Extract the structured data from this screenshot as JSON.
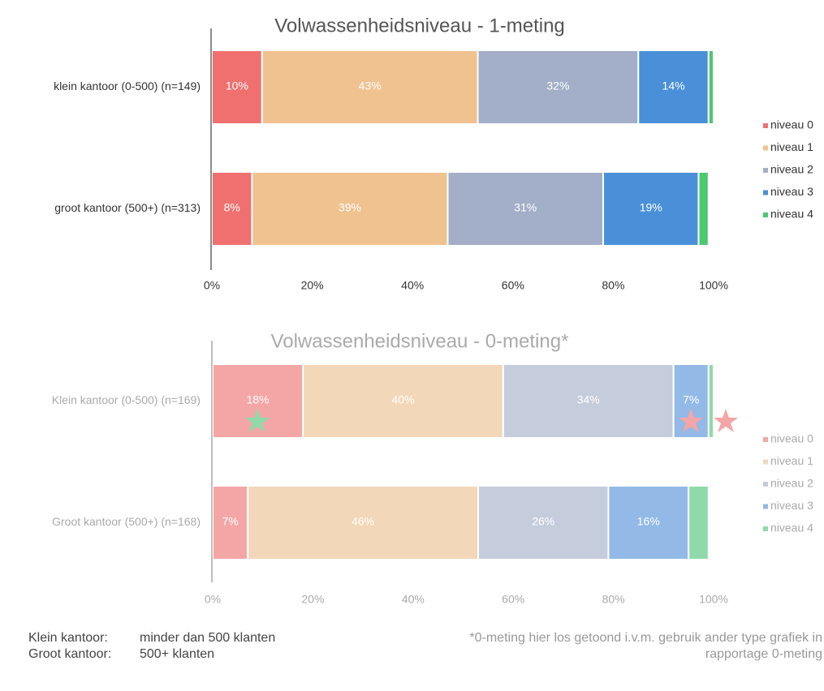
{
  "chart_data": [
    {
      "type": "stacked_bar_h",
      "title": "Volwassenheidsniveau - 1-meting",
      "categories": [
        "klein kantoor (0-500) (n=149)",
        "groot kantoor (500+) (n=313)"
      ],
      "series": [
        {
          "name": "niveau 0",
          "color": "#f07070",
          "values": [
            10,
            8
          ],
          "value_labels": [
            "10%",
            "8%"
          ]
        },
        {
          "name": "niveau 1",
          "color": "#f0c290",
          "values": [
            43,
            39
          ],
          "value_labels": [
            "43%",
            "39%"
          ]
        },
        {
          "name": "niveau 2",
          "color": "#a3afc8",
          "values": [
            32,
            31
          ],
          "value_labels": [
            "32%",
            "31%"
          ]
        },
        {
          "name": "niveau 3",
          "color": "#4a90d9",
          "values": [
            14,
            19
          ],
          "value_labels": [
            "14%",
            "19%"
          ]
        },
        {
          "name": "niveau 4",
          "color": "#4cc870",
          "values": [
            1,
            2
          ],
          "value_labels": [
            null,
            null
          ]
        }
      ],
      "xlim": [
        0,
        100
      ],
      "xticks": [
        {
          "value": 0,
          "label": "0%"
        },
        {
          "value": 20,
          "label": "20%"
        },
        {
          "value": 40,
          "label": "40%"
        },
        {
          "value": 60,
          "label": "60%"
        },
        {
          "value": 80,
          "label": "80%"
        },
        {
          "value": 100,
          "label": "100%"
        }
      ],
      "legend": "right"
    },
    {
      "type": "stacked_bar_h",
      "title": "Volwassenheidsniveau - 0-meting*",
      "categories": [
        "Klein kantoor (0-500) (n=169)",
        "Groot kantoor (500+) (n=168)"
      ],
      "series": [
        {
          "name": "niveau 0",
          "color": "#f4a6a6",
          "values": [
            18,
            7
          ],
          "value_labels": [
            "18%",
            "7%"
          ]
        },
        {
          "name": "niveau 1",
          "color": "#f2d7b8",
          "values": [
            40,
            46
          ],
          "value_labels": [
            "40%",
            "46%"
          ]
        },
        {
          "name": "niveau 2",
          "color": "#c5ccdc",
          "values": [
            34,
            26
          ],
          "value_labels": [
            "34%",
            "26%"
          ]
        },
        {
          "name": "niveau 3",
          "color": "#93b9e6",
          "values": [
            7,
            16
          ],
          "value_labels": [
            "7%",
            "16%"
          ]
        },
        {
          "name": "niveau 4",
          "color": "#8fdaa8",
          "values": [
            1,
            4
          ],
          "value_labels": [
            null,
            null
          ]
        }
      ],
      "xlim": [
        0,
        100
      ],
      "xticks": [
        {
          "value": 0,
          "label": "0%"
        },
        {
          "value": 20,
          "label": "20%"
        },
        {
          "value": 40,
          "label": "40%"
        },
        {
          "value": 60,
          "label": "60%"
        },
        {
          "value": 80,
          "label": "80%"
        },
        {
          "value": 100,
          "label": "100%"
        }
      ],
      "legend": "right"
    }
  ],
  "footer": {
    "rows": [
      [
        "Klein kantoor:",
        "minder dan 500 klanten"
      ],
      [
        "Groot kantoor:",
        "500+ klanten"
      ]
    ],
    "note": [
      "*0-meting hier los getoond i.v.m. gebruik ander type grafiek in",
      "rapportage 0-meting"
    ]
  }
}
